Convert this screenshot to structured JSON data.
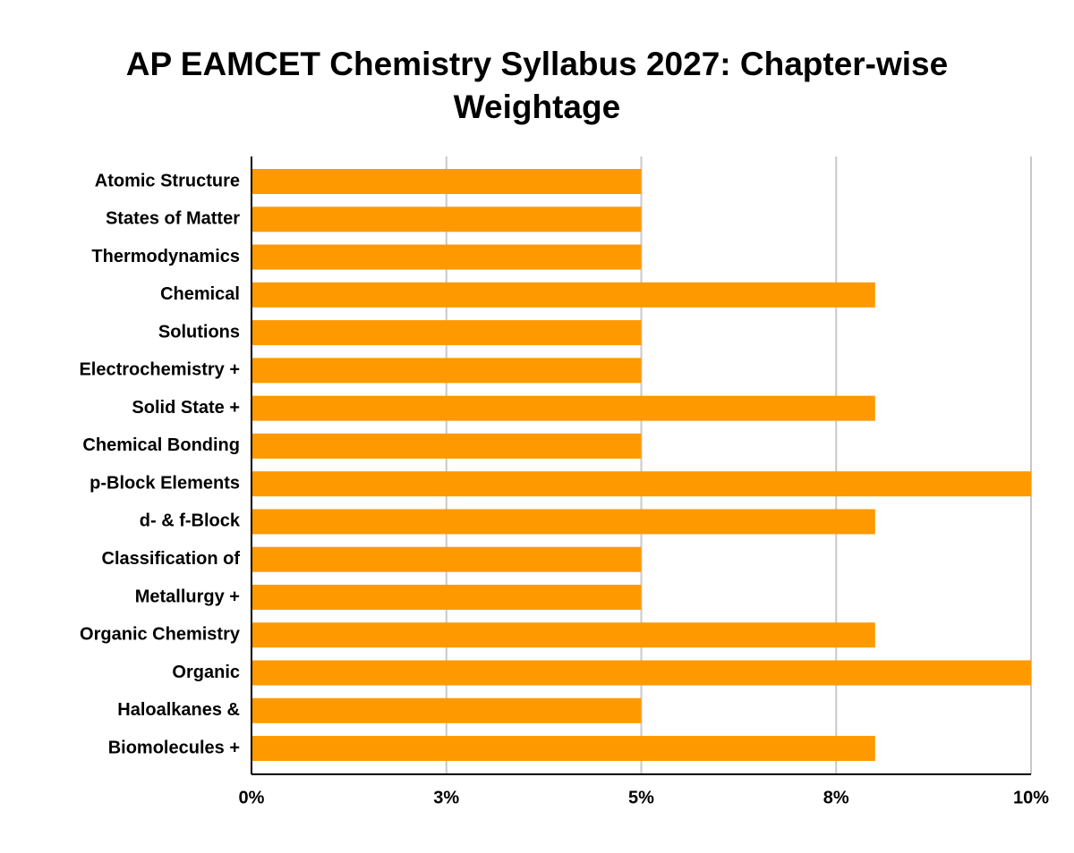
{
  "chart_data": {
    "type": "bar",
    "orientation": "horizontal",
    "title": "AP EAMCET Chemistry Syllabus 2027: Chapter-wise Weightage",
    "categories": [
      "Atomic Structure",
      "States of Matter",
      "Thermodynamics",
      "Chemical",
      "Solutions",
      "Electrochemistry +",
      "Solid State +",
      "Chemical Bonding",
      "p-Block Elements",
      "d- & f-Block",
      "Classification of",
      "Metallurgy +",
      "Organic Chemistry",
      "Organic",
      "Haloalkanes &",
      "Biomolecules +"
    ],
    "values": [
      5,
      5,
      5,
      8,
      5,
      5,
      8,
      5,
      10,
      8,
      5,
      5,
      8,
      10,
      5,
      8
    ],
    "color": "#ff9900",
    "xlim": [
      0,
      10
    ],
    "xticks": [
      {
        "value": 0,
        "label": "0%"
      },
      {
        "value": 2.5,
        "label": "3%"
      },
      {
        "value": 5,
        "label": "5%"
      },
      {
        "value": 7.5,
        "label": "8%"
      },
      {
        "value": 10,
        "label": "10%"
      }
    ],
    "grid": true
  }
}
